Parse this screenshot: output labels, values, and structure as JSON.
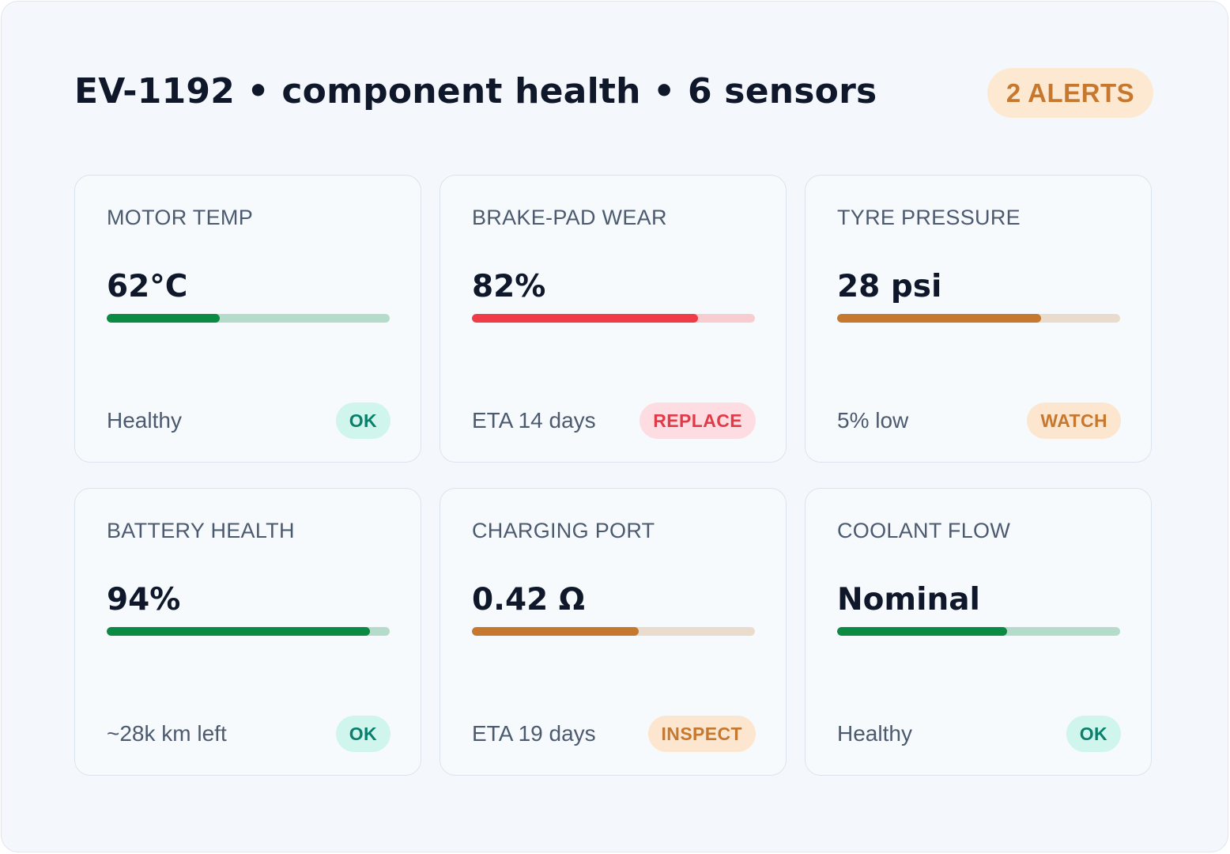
{
  "header": {
    "title": "EV-1192 • component health • 6 sensors",
    "alert_badge": "2 ALERTS"
  },
  "colors": {
    "ok": "#0a8a43",
    "replace": "#f03c47",
    "warn": "#c6782f"
  },
  "cards": [
    {
      "label": "MOTOR TEMP",
      "value": "62°C",
      "level": 0.4,
      "footer": "Healthy",
      "badge": "OK",
      "tone": "ok"
    },
    {
      "label": "BRAKE-PAD WEAR",
      "value": "82%",
      "level": 0.8,
      "footer": "ETA 14 days",
      "badge": "REPLACE",
      "tone": "bad"
    },
    {
      "label": "TYRE PRESSURE",
      "value": "28 psi",
      "level": 0.72,
      "footer": "5% low",
      "badge": "WATCH",
      "tone": "warn"
    },
    {
      "label": "BATTERY HEALTH",
      "value": "94%",
      "level": 0.93,
      "footer": "~28k km left",
      "badge": "OK",
      "tone": "ok"
    },
    {
      "label": "CHARGING PORT",
      "value": "0.42 Ω",
      "level": 0.59,
      "footer": "ETA 19 days",
      "badge": "INSPECT",
      "tone": "warn"
    },
    {
      "label": "COOLANT FLOW",
      "value": "Nominal",
      "level": 0.6,
      "footer": "Healthy",
      "badge": "OK",
      "tone": "ok"
    }
  ]
}
